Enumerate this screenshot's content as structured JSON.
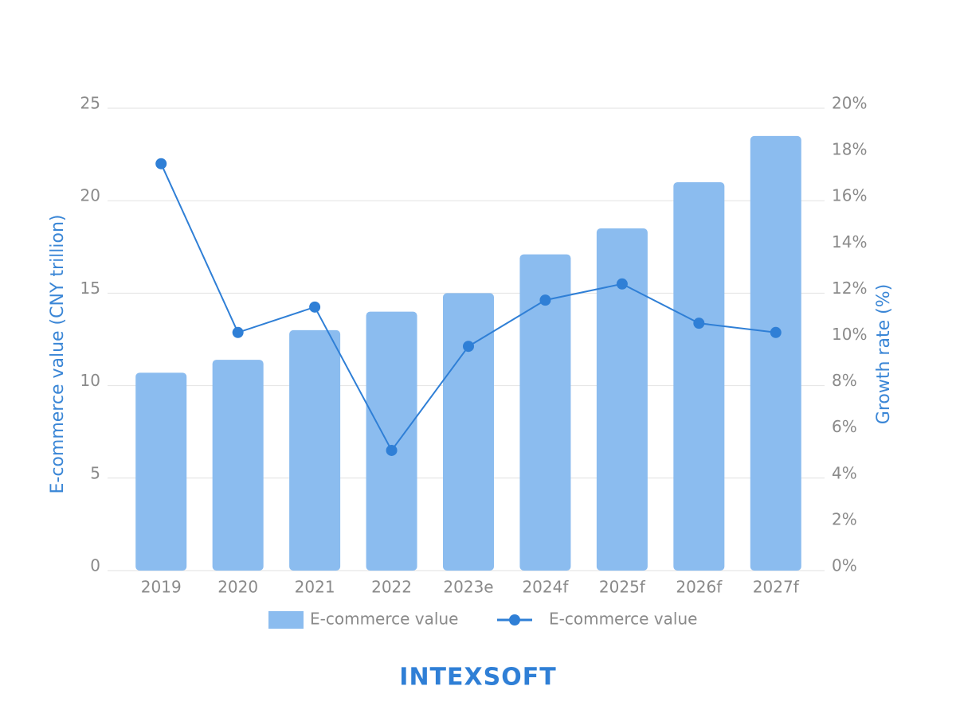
{
  "chart_data": {
    "type": "bar-line",
    "y_label": "E-commerce value (CNY trillion)",
    "y2_label": "Growth rate (%)",
    "categories": [
      "2019",
      "2020",
      "2021",
      "2022",
      "2023e",
      "2024f",
      "2025f",
      "2026f",
      "2027f"
    ],
    "series": [
      {
        "name": "E-commerce value",
        "type": "bar",
        "color": "#8bbcef",
        "values": [
          10.7,
          11.4,
          13.0,
          14.0,
          15.0,
          17.1,
          18.5,
          21.0,
          23.5
        ]
      },
      {
        "name": "E-commerce value",
        "type": "line",
        "axis": "y2",
        "color": "#2f7fd6",
        "values": [
          17.6,
          10.3,
          11.4,
          5.2,
          9.7,
          11.7,
          12.4,
          10.7,
          10.3
        ]
      }
    ],
    "ylim": [
      0,
      25
    ],
    "yticks": [
      0,
      5,
      10,
      15,
      20,
      25
    ],
    "y2lim": [
      0,
      20
    ],
    "y2ticks": [
      {
        "value": 0,
        "label": "0%"
      },
      {
        "value": 2,
        "label": "2%"
      },
      {
        "value": 4,
        "label": "4%"
      },
      {
        "value": 6,
        "label": "6%"
      },
      {
        "value": 8,
        "label": "8%"
      },
      {
        "value": 10,
        "label": "10%"
      },
      {
        "value": 12,
        "label": "12%"
      },
      {
        "value": 14,
        "label": "14%"
      },
      {
        "value": 16,
        "label": "16%"
      },
      {
        "value": 18,
        "label": "18%"
      },
      {
        "value": 20,
        "label": "20%"
      }
    ],
    "grid": true,
    "logo": "INTEXSOFT"
  }
}
